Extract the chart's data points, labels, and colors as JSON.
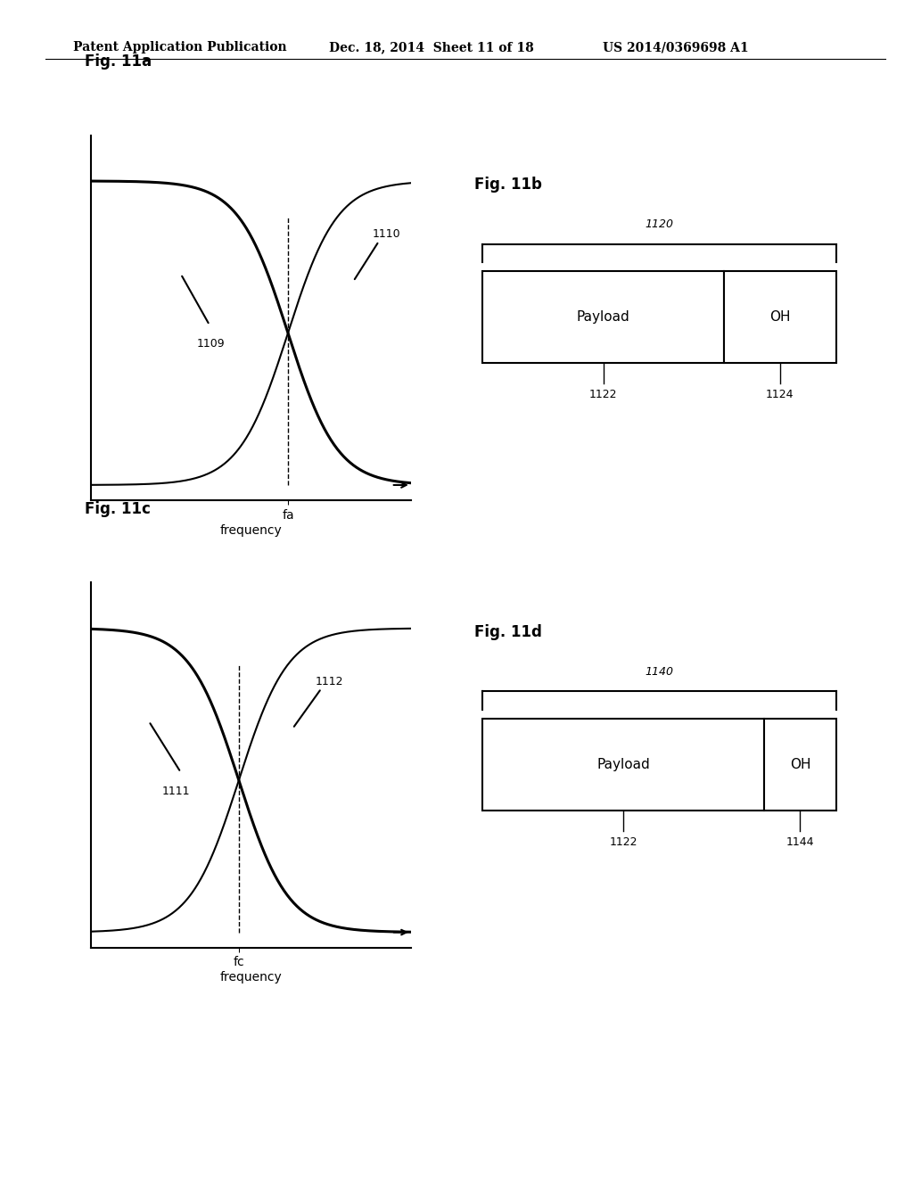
{
  "header_left": "Patent Application Publication",
  "header_mid": "Dec. 18, 2014  Sheet 11 of 18",
  "header_right": "US 2014/0369698 A1",
  "fig11a_label": "Fig. 11a",
  "fig11b_label": "Fig. 11b",
  "fig11c_label": "Fig. 11c",
  "fig11d_label": "Fig. 11d",
  "label_1109": "1109",
  "label_1110": "1110",
  "label_1111": "1111",
  "label_1112": "1112",
  "label_1120": "1120",
  "label_1122a": "1122",
  "label_1124": "1124",
  "label_1140": "1140",
  "label_1122b": "1122",
  "label_1144": "1144",
  "text_payload": "Payload",
  "text_oh": "OH",
  "text_fa": "fa",
  "text_fc": "fc",
  "text_frequency": "frequency",
  "background_color": "#ffffff",
  "line_color": "#000000"
}
